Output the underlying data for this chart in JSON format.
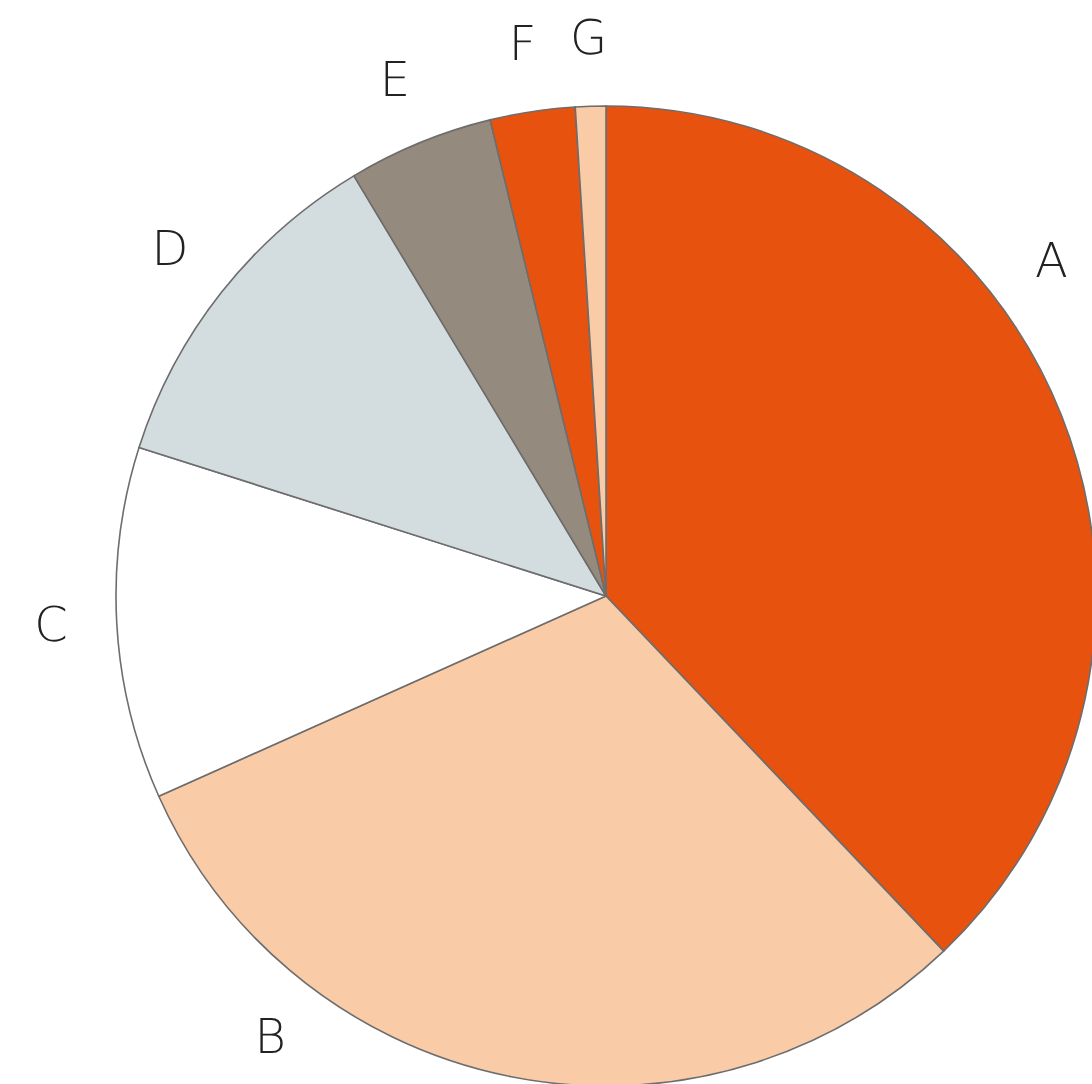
{
  "chart_data": {
    "type": "pie",
    "categories": [
      "A",
      "B",
      "C",
      "D",
      "E",
      "F",
      "G"
    ],
    "values": [
      37.9,
      30.4,
      11.6,
      11.5,
      4.8,
      2.8,
      1.0
    ],
    "colors": [
      "#e8520f",
      "#f9cba7",
      "#ffffff",
      "#d3dde0",
      "#958a7e",
      "#e8520f",
      "#f9cba7"
    ]
  }
}
